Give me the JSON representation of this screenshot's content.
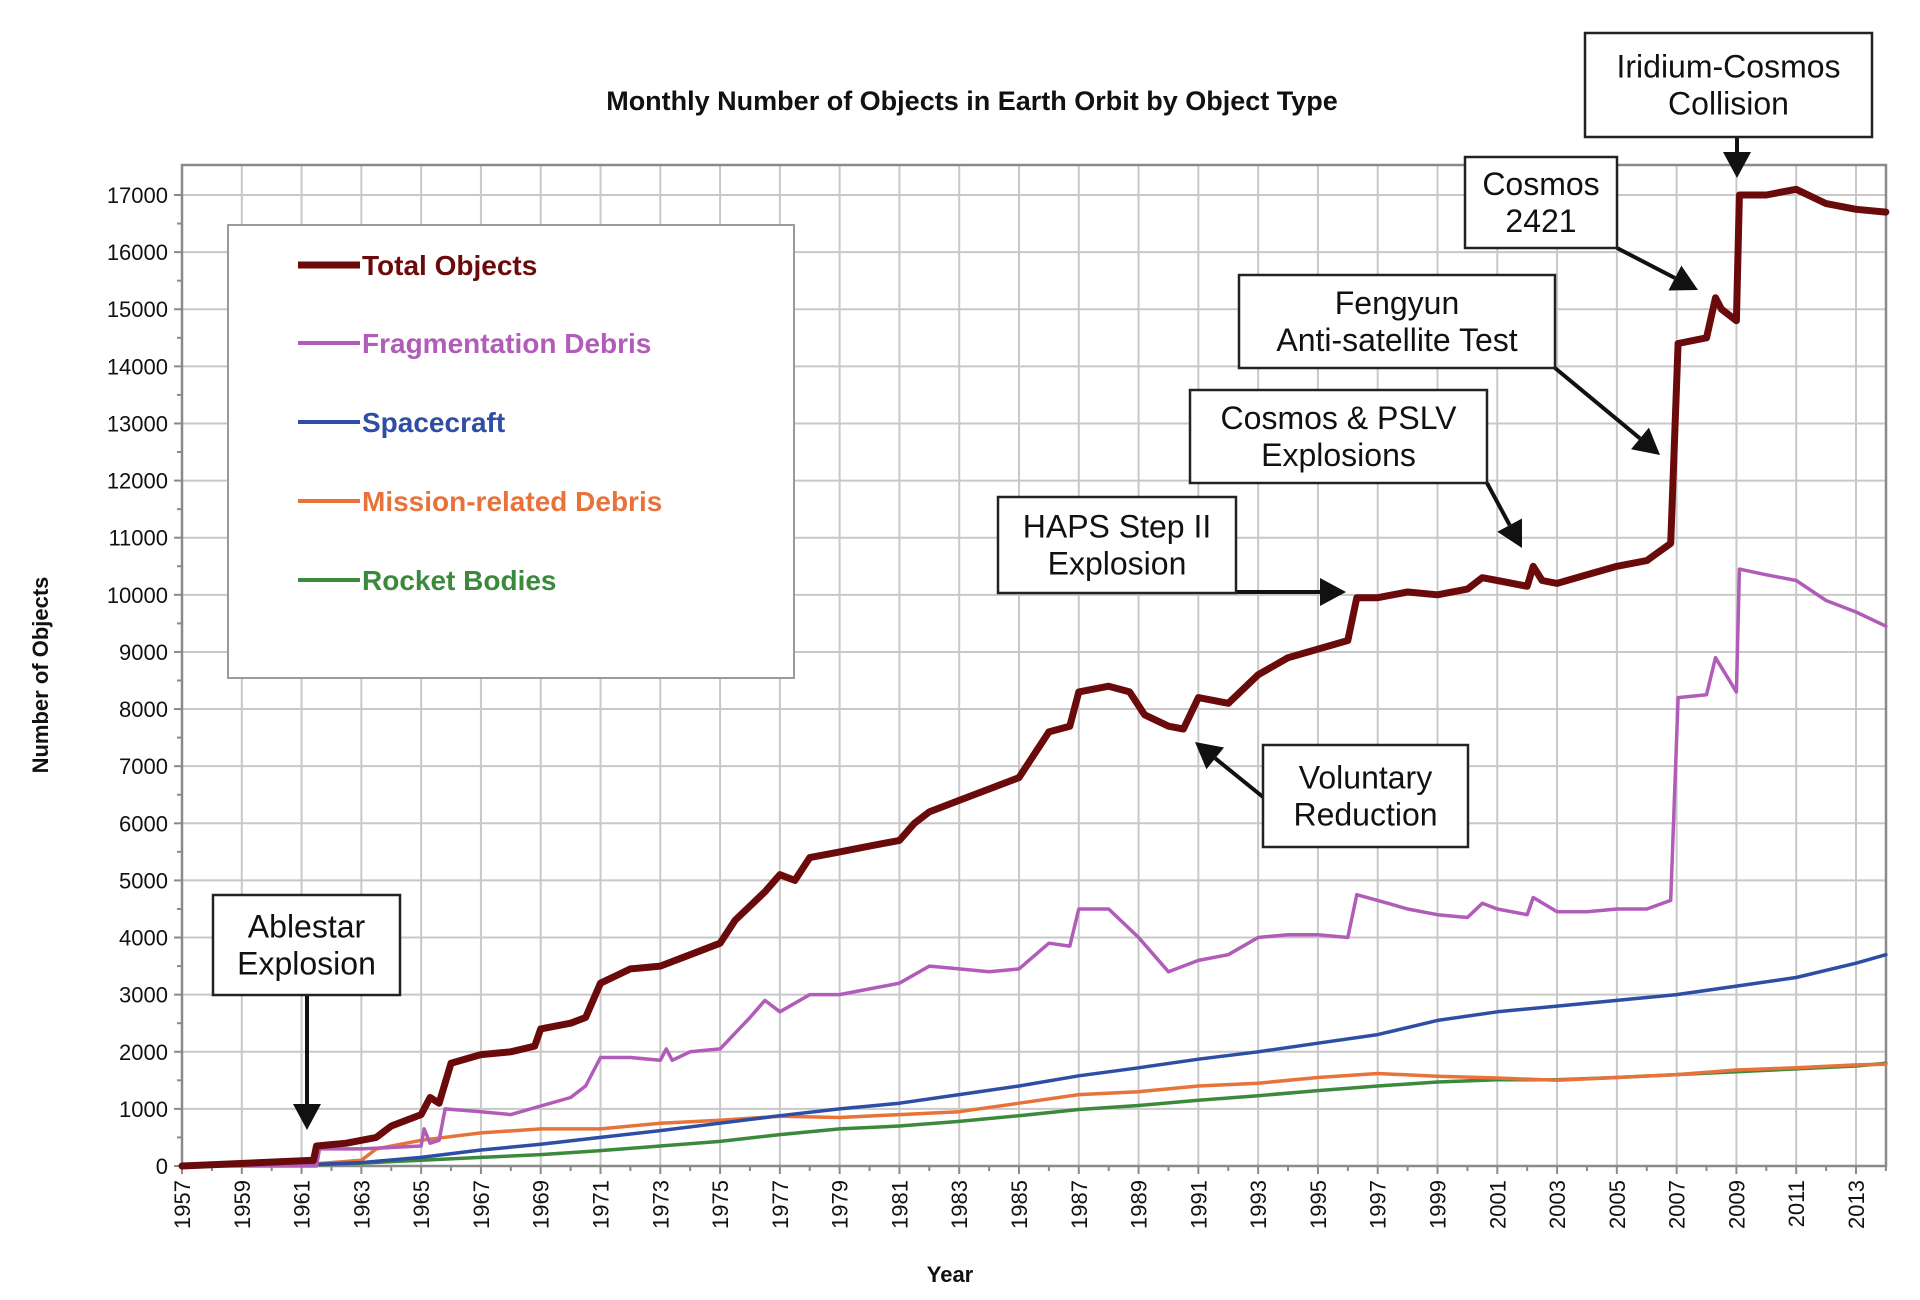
{
  "chart_data": {
    "type": "line",
    "title": "Monthly Number of Objects in Earth Orbit by Object Type",
    "xlabel": "Year",
    "ylabel": "Number of Objects",
    "xlim": [
      1957,
      2014
    ],
    "ylim": [
      0,
      17500
    ],
    "grid": true,
    "legend_position": "top-left",
    "x_ticks": [
      1957,
      1959,
      1961,
      1963,
      1965,
      1967,
      1969,
      1971,
      1973,
      1975,
      1977,
      1979,
      1981,
      1983,
      1985,
      1987,
      1989,
      1991,
      1993,
      1995,
      1997,
      1999,
      2001,
      2003,
      2005,
      2007,
      2009,
      2011,
      2013
    ],
    "y_ticks": [
      0,
      1000,
      2000,
      3000,
      4000,
      5000,
      6000,
      7000,
      8000,
      9000,
      10000,
      11000,
      12000,
      13000,
      14000,
      15000,
      16000,
      17000
    ],
    "series": [
      {
        "name": "Total Objects",
        "color": "#6b0a0a",
        "x": [
          1957,
          1961.4,
          1961.5,
          1962.5,
          1963.5,
          1964,
          1965,
          1965.3,
          1965.6,
          1966,
          1967,
          1968,
          1968.8,
          1969,
          1970,
          1970.5,
          1971,
          1972,
          1973,
          1974,
          1975,
          1975.5,
          1976.5,
          1977,
          1977.5,
          1978,
          1979,
          1980,
          1981,
          1981.5,
          1982,
          1983,
          1984,
          1985,
          1985.5,
          1986,
          1986.7,
          1987,
          1988,
          1988.7,
          1989.2,
          1990,
          1990.5,
          1991,
          1992,
          1993,
          1994,
          1995,
          1996,
          1996.3,
          1997,
          1998,
          1999,
          2000,
          2000.5,
          2001,
          2002,
          2002.2,
          2002.5,
          2003,
          2004,
          2005,
          2006,
          2006.8,
          2007.05,
          2008,
          2008.3,
          2008.5,
          2009,
          2009.1,
          2010,
          2010.5,
          2011,
          2012,
          2013,
          2014
        ],
        "values": [
          0,
          100,
          350,
          400,
          500,
          700,
          900,
          1200,
          1100,
          1800,
          1950,
          2000,
          2100,
          2400,
          2500,
          2600,
          3200,
          3450,
          3500,
          3700,
          3900,
          4300,
          4800,
          5100,
          5000,
          5400,
          5500,
          5600,
          5700,
          6000,
          6200,
          6400,
          6600,
          6800,
          7200,
          7600,
          7700,
          8300,
          8400,
          8300,
          7900,
          7700,
          7650,
          8200,
          8100,
          8600,
          8900,
          9050,
          9200,
          9950,
          9950,
          10050,
          10000,
          10100,
          10300,
          10250,
          10150,
          10500,
          10250,
          10200,
          10350,
          10500,
          10600,
          10900,
          14400,
          14500,
          15200,
          15000,
          14800,
          17000,
          17000,
          17050,
          17100,
          16850,
          16750,
          16700
        ]
      },
      {
        "name": "Fragmentation Debris",
        "color": "#b05cb8",
        "x": [
          1957,
          1961.5,
          1961.6,
          1963,
          1965,
          1965.1,
          1965.3,
          1965.6,
          1965.8,
          1967,
          1968,
          1969,
          1970,
          1970.5,
          1971,
          1972,
          1973,
          1973.2,
          1973.4,
          1974,
          1975,
          1976,
          1976.5,
          1977,
          1978,
          1979,
          1980,
          1981,
          1982,
          1983,
          1984,
          1985,
          1986,
          1986.7,
          1987,
          1988,
          1989,
          1990,
          1991,
          1992,
          1993,
          1994,
          1995,
          1996,
          1996.3,
          1997,
          1998,
          1999,
          2000,
          2000.5,
          2001,
          2002,
          2002.2,
          2003,
          2004,
          2005,
          2006,
          2006.8,
          2007.05,
          2008,
          2008.3,
          2009,
          2009.1,
          2010,
          2011,
          2012,
          2013,
          2014
        ],
        "values": [
          0,
          0,
          300,
          300,
          350,
          650,
          400,
          450,
          1000,
          950,
          900,
          1050,
          1200,
          1400,
          1900,
          1900,
          1850,
          2050,
          1850,
          2000,
          2050,
          2600,
          2900,
          2700,
          3000,
          3000,
          3100,
          3200,
          3500,
          3450,
          3400,
          3450,
          3900,
          3850,
          4500,
          4500,
          4000,
          3400,
          3600,
          3700,
          4000,
          4050,
          4050,
          4000,
          4750,
          4650,
          4500,
          4400,
          4350,
          4600,
          4500,
          4400,
          4700,
          4450,
          4450,
          4500,
          4500,
          4650,
          8200,
          8250,
          8900,
          8300,
          10450,
          10350,
          10250,
          9900,
          9700,
          9450
        ]
      },
      {
        "name": "Spacecraft",
        "color": "#2e4ea6",
        "x": [
          1957,
          1961,
          1963,
          1965,
          1967,
          1969,
          1971,
          1973,
          1975,
          1977,
          1979,
          1981,
          1983,
          1985,
          1987,
          1989,
          1991,
          1993,
          1995,
          1997,
          1999,
          2001,
          2003,
          2005,
          2007,
          2009,
          2011,
          2013,
          2014
        ],
        "values": [
          0,
          20,
          60,
          150,
          280,
          380,
          500,
          620,
          750,
          880,
          1000,
          1100,
          1250,
          1400,
          1580,
          1720,
          1870,
          2000,
          2150,
          2300,
          2550,
          2700,
          2800,
          2900,
          3000,
          3150,
          3300,
          3550,
          3700
        ]
      },
      {
        "name": "Mission-related Debris",
        "color": "#e8733a",
        "x": [
          1957,
          1961,
          1963,
          1963.5,
          1965,
          1967,
          1969,
          1971,
          1973,
          1975,
          1977,
          1979,
          1981,
          1983,
          1985,
          1987,
          1989,
          1991,
          1993,
          1995,
          1997,
          1999,
          2001,
          2003,
          2005,
          2007,
          2009,
          2011,
          2013,
          2014
        ],
        "values": [
          0,
          20,
          100,
          300,
          450,
          580,
          650,
          650,
          750,
          800,
          870,
          850,
          900,
          950,
          1100,
          1250,
          1300,
          1400,
          1450,
          1550,
          1620,
          1570,
          1540,
          1500,
          1550,
          1600,
          1680,
          1720,
          1770,
          1780
        ]
      },
      {
        "name": "Rocket Bodies",
        "color": "#3b8a3b",
        "x": [
          1957,
          1961,
          1963,
          1965,
          1967,
          1969,
          1971,
          1973,
          1975,
          1977,
          1979,
          1981,
          1983,
          1985,
          1987,
          1989,
          1991,
          1993,
          1995,
          1997,
          1999,
          2001,
          2003,
          2005,
          2007,
          2009,
          2011,
          2013,
          2014
        ],
        "values": [
          0,
          10,
          50,
          100,
          150,
          200,
          270,
          350,
          430,
          550,
          650,
          700,
          780,
          880,
          990,
          1060,
          1150,
          1230,
          1320,
          1400,
          1470,
          1510,
          1510,
          1550,
          1600,
          1650,
          1700,
          1750,
          1800
        ]
      }
    ],
    "annotations": [
      {
        "id": "ablestar",
        "lines": [
          "Ablestar",
          "Explosion"
        ],
        "target_year": 1961.5,
        "target_value": 600
      },
      {
        "id": "haps",
        "lines": [
          "HAPS Step II",
          "Explosion"
        ],
        "target_year": 1996.2,
        "target_value": 10000
      },
      {
        "id": "voluntary",
        "lines": [
          "Voluntary",
          "Reduction"
        ],
        "target_year": 1990.8,
        "target_value": 7400
      },
      {
        "id": "cosmos-pslv",
        "lines": [
          "Cosmos & PSLV",
          "Explosions"
        ],
        "target_year": 2002.2,
        "target_value": 10700
      },
      {
        "id": "fengyun",
        "lines": [
          "Fengyun",
          "Anti-satellite Test"
        ],
        "target_year": 2006.7,
        "target_value": 12700
      },
      {
        "id": "cosmos-2421",
        "lines": [
          "Cosmos",
          "2421"
        ],
        "target_year": 2008.3,
        "target_value": 15300
      },
      {
        "id": "iridium-cosmos",
        "lines": [
          "Iridium-Cosmos",
          "Collision"
        ],
        "target_year": 2009.1,
        "target_value": 17200
      }
    ]
  }
}
